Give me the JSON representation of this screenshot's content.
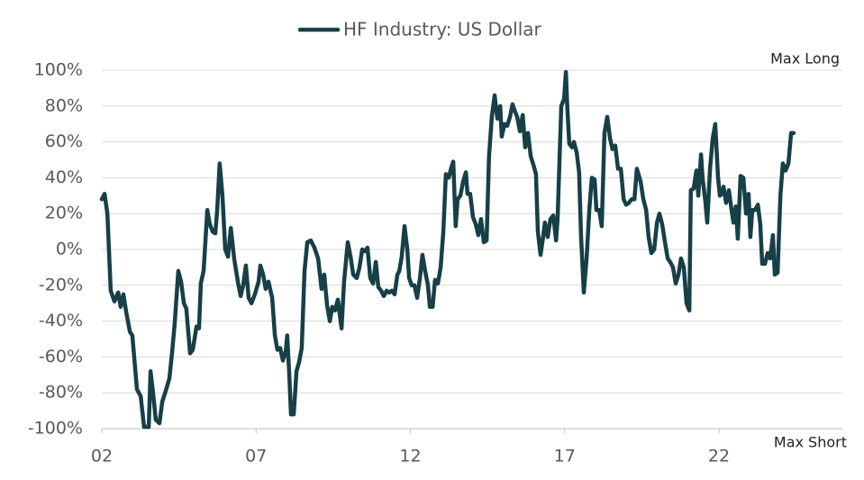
{
  "chart_data": {
    "type": "line",
    "annotations": [
      "Max Long",
      "Max Short"
    ],
    "x": [
      2002.0,
      2002.09,
      2002.18,
      2002.29,
      2002.41,
      2002.53,
      2002.61,
      2002.7,
      2002.79,
      2002.91,
      2002.99,
      2003.14,
      2003.26,
      2003.37,
      2003.52,
      2003.58,
      2003.66,
      2003.75,
      2003.87,
      2003.96,
      2004.07,
      2004.19,
      2004.28,
      2004.36,
      2004.48,
      2004.57,
      2004.66,
      2004.74,
      2004.86,
      2004.95,
      2005.07,
      2005.15,
      2005.21,
      2005.3,
      2005.42,
      2005.5,
      2005.59,
      2005.68,
      2005.74,
      2005.82,
      2005.91,
      2006.0,
      2006.09,
      2006.18,
      2006.29,
      2006.41,
      2006.5,
      2006.58,
      2006.67,
      2006.76,
      2006.85,
      2006.96,
      2007.08,
      2007.14,
      2007.23,
      2007.31,
      2007.4,
      2007.52,
      2007.61,
      2007.69,
      2007.78,
      2007.87,
      2007.96,
      2008.01,
      2008.07,
      2008.13,
      2008.22,
      2008.31,
      2008.39,
      2008.48,
      2008.57,
      2008.66,
      2008.77,
      2008.89,
      2009.01,
      2009.12,
      2009.21,
      2009.3,
      2009.39,
      2009.47,
      2009.56,
      2009.65,
      2009.77,
      2009.85,
      2009.97,
      2010.06,
      2010.15,
      2010.26,
      2010.35,
      2010.44,
      2010.53,
      2010.61,
      2010.7,
      2010.79,
      2010.88,
      2010.96,
      2011.05,
      2011.14,
      2011.23,
      2011.31,
      2011.4,
      2011.49,
      2011.58,
      2011.64,
      2011.72,
      2011.81,
      2011.9,
      2011.96,
      2012.04,
      2012.13,
      2012.22,
      2012.31,
      2012.39,
      2012.48,
      2012.57,
      2012.63,
      2012.72,
      2012.8,
      2012.89,
      2012.98,
      2013.07,
      2013.15,
      2013.24,
      2013.33,
      2013.39,
      2013.47,
      2013.53,
      2013.62,
      2013.71,
      2013.8,
      2013.85,
      2013.94,
      2014.03,
      2014.12,
      2014.2,
      2014.29,
      2014.38,
      2014.47,
      2014.55,
      2014.64,
      2014.73,
      2014.82,
      2014.91,
      2014.96,
      2015.05,
      2015.14,
      2015.23,
      2015.31,
      2015.37,
      2015.46,
      2015.55,
      2015.64,
      2015.72,
      2015.81,
      2015.9,
      2015.99,
      2016.07,
      2016.13,
      2016.22,
      2016.31,
      2016.36,
      2016.45,
      2016.54,
      2016.63,
      2016.72,
      2016.77,
      2016.89,
      2016.98,
      2017.04,
      2017.09,
      2017.15,
      2017.24,
      2017.3,
      2017.39,
      2017.47,
      2017.53,
      2017.62,
      2017.71,
      2017.8,
      2017.88,
      2017.97,
      2018.03,
      2018.12,
      2018.2,
      2018.29,
      2018.38,
      2018.47,
      2018.55,
      2018.64,
      2018.73,
      2018.82,
      2018.91,
      2018.99,
      2019.08,
      2019.17,
      2019.26,
      2019.34,
      2019.46,
      2019.55,
      2019.64,
      2019.72,
      2019.81,
      2019.9,
      2019.99,
      2020.07,
      2020.16,
      2020.25,
      2020.34,
      2020.42,
      2020.51,
      2020.6,
      2020.69,
      2020.77,
      2020.86,
      2020.95,
      2021.04,
      2021.09,
      2021.18,
      2021.27,
      2021.33,
      2021.42,
      2021.47,
      2021.56,
      2021.62,
      2021.71,
      2021.8,
      2021.88,
      2021.97,
      2022.03,
      2022.09,
      2022.15,
      2022.23,
      2022.32,
      2022.41,
      2022.47,
      2022.55,
      2022.61,
      2022.7,
      2022.79,
      2022.88,
      2022.96,
      2023.02,
      2023.08,
      2023.17,
      2023.26,
      2023.34,
      2023.4,
      2023.49,
      2023.58,
      2023.66,
      2023.75,
      2023.81,
      2023.9,
      2023.99,
      2024.07,
      2024.16,
      2024.25,
      2024.34,
      2024.42
    ],
    "series": [
      {
        "name": "HF Industry: US Dollar",
        "color": "#173f48",
        "values": [
          28,
          31,
          20,
          -23,
          -29,
          -24,
          -32,
          -25,
          -35,
          -46,
          -48,
          -78,
          -82,
          -99,
          -99,
          -68,
          -80,
          -95,
          -97,
          -85,
          -79,
          -72,
          -57,
          -42,
          -12,
          -18,
          -30,
          -33,
          -58,
          -56,
          -43,
          -44,
          -19,
          -12,
          22,
          14,
          10,
          9,
          22,
          48,
          30,
          0,
          -4,
          12,
          -5,
          -18,
          -26,
          -20,
          -9,
          -27,
          -30,
          -25,
          -18,
          -9,
          -14,
          -22,
          -18,
          -27,
          -48,
          -56,
          -55,
          -62,
          -57,
          -48,
          -68,
          -92,
          -92,
          -68,
          -63,
          -55,
          -12,
          4,
          5,
          1,
          -5,
          -22,
          -14,
          -31,
          -40,
          -32,
          -34,
          -28,
          -44,
          -18,
          4,
          -4,
          -14,
          -16,
          -10,
          0,
          -1,
          1,
          -16,
          -19,
          -7,
          -21,
          -23,
          -26,
          -23,
          -24,
          -23,
          -25,
          -14,
          -12,
          -4,
          13,
          0,
          -16,
          -20,
          -20,
          -27,
          -16,
          -3,
          -12,
          -20,
          -32,
          -32,
          -17,
          -19,
          -10,
          10,
          42,
          40,
          46,
          49,
          13,
          28,
          30,
          38,
          43,
          31,
          31,
          18,
          14,
          8,
          17,
          4,
          5,
          52,
          74,
          86,
          73,
          80,
          63,
          70,
          69,
          74,
          81,
          78,
          74,
          66,
          75,
          57,
          65,
          52,
          47,
          42,
          10,
          -3,
          8,
          15,
          7,
          17,
          19,
          5,
          17,
          80,
          84,
          99,
          78,
          59,
          57,
          60,
          54,
          43,
          8,
          -24,
          -5,
          22,
          40,
          39,
          22,
          22,
          13,
          65,
          74,
          62,
          56,
          58,
          45,
          45,
          28,
          25,
          26,
          28,
          28,
          45,
          38,
          28,
          22,
          7,
          -2,
          0,
          15,
          20,
          14,
          4,
          -5,
          -7,
          -10,
          -19,
          -14,
          -5,
          -10,
          -30,
          -34,
          33,
          34,
          44,
          30,
          53,
          40,
          27,
          15,
          45,
          62,
          70,
          40,
          30,
          31,
          35,
          26,
          33,
          22,
          15,
          24,
          6,
          41,
          40,
          20,
          31,
          7,
          22,
          22,
          25,
          14,
          -8,
          -8,
          -2,
          -5,
          8,
          -14,
          -13,
          30,
          48,
          44,
          48,
          65,
          65
        ]
      }
    ],
    "xlim": [
      2002,
      2026
    ],
    "xticks": [
      {
        "value": 2002,
        "label": "02"
      },
      {
        "value": 2007,
        "label": "07"
      },
      {
        "value": 2012,
        "label": "12"
      },
      {
        "value": 2017,
        "label": "17"
      },
      {
        "value": 2022,
        "label": "22"
      }
    ],
    "ylim": [
      -100,
      100
    ],
    "yticks": [
      {
        "value": -100,
        "label": "-100%"
      },
      {
        "value": -80,
        "label": "-80%"
      },
      {
        "value": -60,
        "label": "-60%"
      },
      {
        "value": -40,
        "label": "-40%"
      },
      {
        "value": -20,
        "label": "-20%"
      },
      {
        "value": 0,
        "label": "0%"
      },
      {
        "value": 20,
        "label": "20%"
      },
      {
        "value": 40,
        "label": "40%"
      },
      {
        "value": 60,
        "label": "60%"
      },
      {
        "value": 80,
        "label": "80%"
      },
      {
        "value": 100,
        "label": "100%"
      }
    ],
    "grid": true,
    "legend": "top"
  }
}
